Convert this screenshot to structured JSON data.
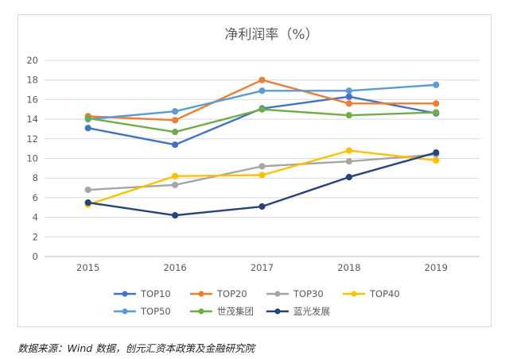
{
  "chart_data": {
    "type": "line",
    "title": "净利润率（%）",
    "xlabel": "",
    "ylabel": "",
    "categories": [
      "2015",
      "2016",
      "2017",
      "2018",
      "2019"
    ],
    "ylim": [
      0,
      20
    ],
    "yticks": [
      0,
      2,
      4,
      6,
      8,
      10,
      12,
      14,
      16,
      18,
      20
    ],
    "grid": true,
    "legend_position": "bottom",
    "series": [
      {
        "name": "TOP10",
        "color": "#4472c4",
        "values": [
          13.1,
          11.4,
          15.1,
          16.3,
          14.6
        ]
      },
      {
        "name": "TOP20",
        "color": "#ed7d31",
        "values": [
          14.3,
          13.9,
          18.0,
          15.6,
          15.6
        ]
      },
      {
        "name": "TOP30",
        "color": "#a5a5a5",
        "values": [
          6.8,
          7.3,
          9.2,
          9.7,
          10.4
        ]
      },
      {
        "name": "TOP40",
        "color": "#ffc000",
        "values": [
          5.3,
          8.2,
          8.3,
          10.8,
          9.8
        ]
      },
      {
        "name": "TOP50",
        "color": "#5b9bd5",
        "values": [
          14.0,
          14.8,
          16.9,
          16.9,
          17.5
        ]
      },
      {
        "name": "世茂集团",
        "color": "#70ad47",
        "values": [
          14.1,
          12.7,
          15.0,
          14.4,
          14.7
        ]
      },
      {
        "name": "蓝光发展",
        "color": "#264478",
        "values": [
          5.5,
          4.2,
          5.1,
          8.1,
          10.6
        ]
      }
    ]
  },
  "source_note": "数据来源：Wind 数据，创元汇资本政策及金融研究院"
}
